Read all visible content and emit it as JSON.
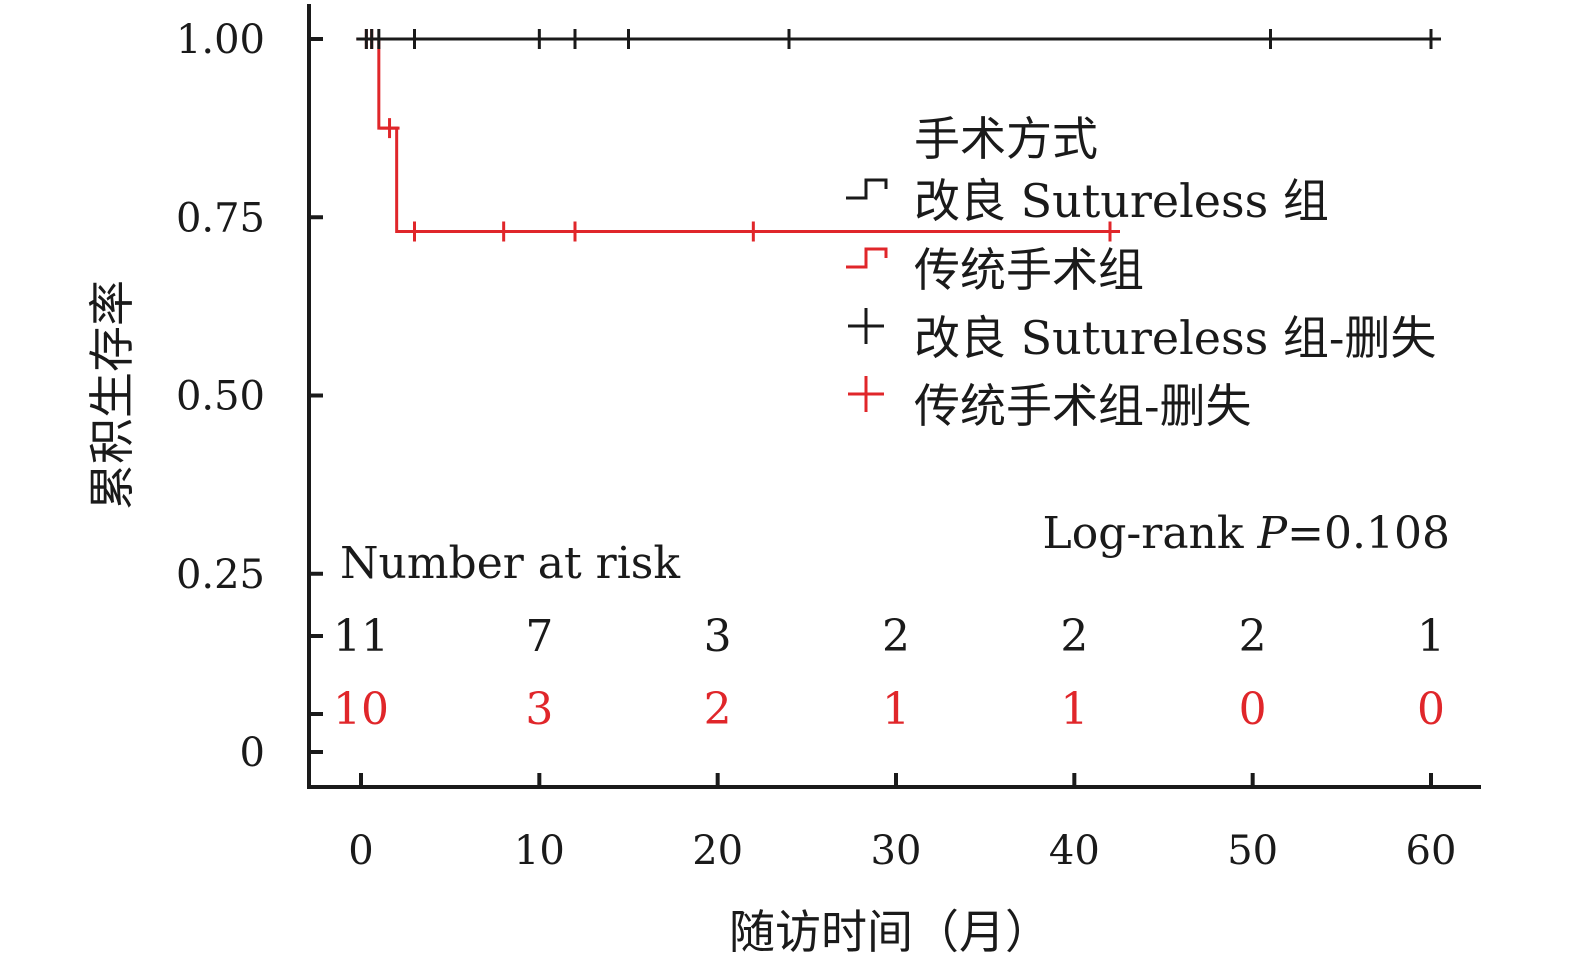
{
  "chart_data": {
    "type": "line",
    "subtype": "kaplan-meier",
    "title": "",
    "xlabel": "随访时间（月）",
    "ylabel": "累积生存率",
    "xlim": [
      0,
      60
    ],
    "ylim": [
      0,
      1
    ],
    "x_ticks": [
      "0",
      "10",
      "20",
      "30",
      "40",
      "50",
      "60"
    ],
    "y_ticks": [
      "0",
      "0.25",
      "0.50",
      "0.75",
      "1.00"
    ],
    "grid": false,
    "legend": {
      "title": "手术方式",
      "placement": "top-right",
      "entries": [
        {
          "label": "改良 Sutureless 组",
          "color": "#1a1a1a",
          "symbol": "step"
        },
        {
          "label": "传统手术组",
          "color": "#e0262a",
          "symbol": "step"
        },
        {
          "label": "改良 Sutureless 组-删失",
          "color": "#1a1a1a",
          "symbol": "plus"
        },
        {
          "label": "传统手术组-删失",
          "color": "#e0262a",
          "symbol": "plus"
        }
      ]
    },
    "series": [
      {
        "color": "#1a1a1a",
        "steps": [
          [
            0,
            1.0
          ],
          [
            60,
            1.0
          ]
        ],
        "censored": [
          [
            0.3,
            1.0
          ],
          [
            0.6,
            1.0
          ],
          [
            1,
            1.0
          ],
          [
            3,
            1.0
          ],
          [
            10,
            1.0
          ],
          [
            12,
            1.0
          ],
          [
            15,
            1.0
          ],
          [
            24,
            1.0
          ],
          [
            51,
            1.0
          ],
          [
            60,
            1.0
          ]
        ]
      },
      {
        "color": "#e0262a",
        "steps": [
          [
            0,
            1.0
          ],
          [
            1,
            1.0
          ],
          [
            1,
            0.875
          ],
          [
            2,
            0.875
          ],
          [
            2,
            0.73
          ],
          [
            42.5,
            0.73
          ]
        ],
        "censored": [
          [
            0.3,
            1.0
          ],
          [
            0.6,
            1.0
          ],
          [
            1.6,
            0.875
          ],
          [
            3,
            0.73
          ],
          [
            8,
            0.73
          ],
          [
            12,
            0.73
          ],
          [
            22,
            0.73
          ],
          [
            42,
            0.73
          ]
        ]
      }
    ],
    "annotation": {
      "prefix": "Log-rank ",
      "italic": "P",
      "suffix": "=0.108"
    },
    "risk_table": {
      "title": "Number at risk",
      "times": [
        0,
        10,
        20,
        30,
        40,
        50,
        60
      ],
      "rows": [
        {
          "color": "#1a1a1a",
          "values": [
            "11",
            "7",
            "3",
            "2",
            "2",
            "2",
            "1"
          ]
        },
        {
          "color": "#e0262a",
          "values": [
            "10",
            "3",
            "2",
            "1",
            "1",
            "0",
            "0"
          ]
        }
      ]
    }
  }
}
